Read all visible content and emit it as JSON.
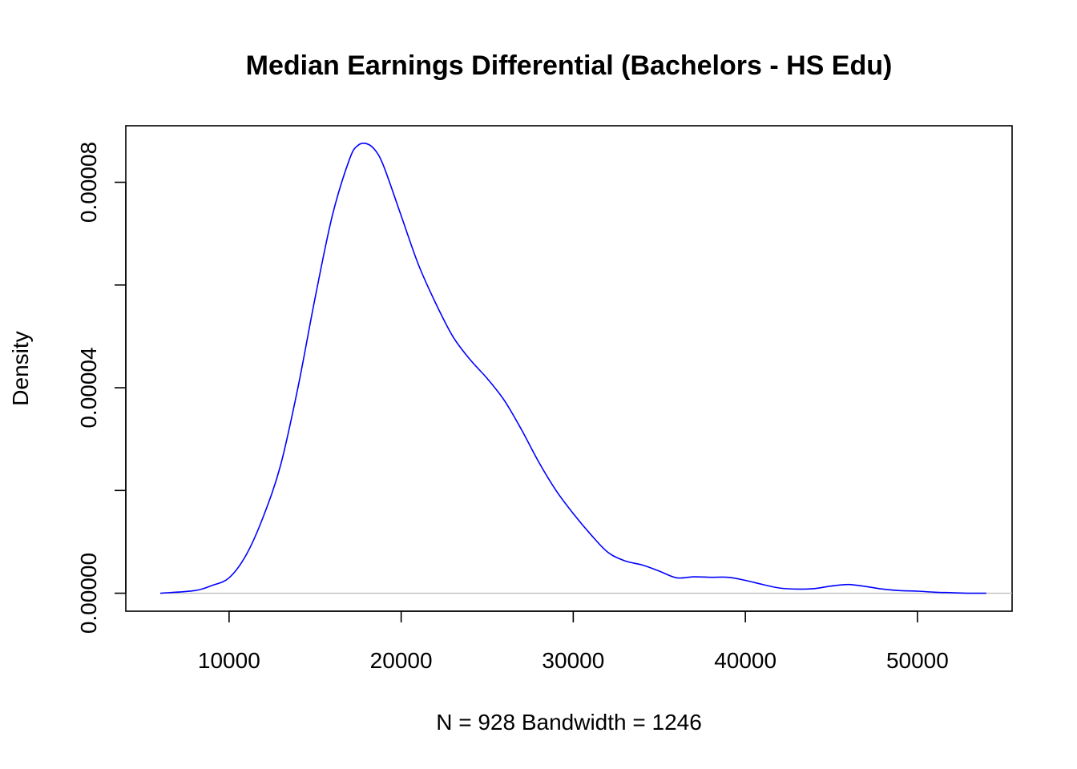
{
  "chart_data": {
    "type": "line",
    "title": "Median Earnings Differential (Bachelors - HS Edu)",
    "xlabel": "N = 928   Bandwidth = 1246",
    "ylabel": "Density",
    "xlim": [
      4000,
      55500
    ],
    "ylim": [
      -3.5e-06,
      9.1e-05
    ],
    "x_ticks": [
      10000,
      20000,
      30000,
      40000,
      50000
    ],
    "x_tick_labels": [
      "10000",
      "20000",
      "30000",
      "40000",
      "50000"
    ],
    "y_ticks": [
      0,
      2e-05,
      4e-05,
      6e-05,
      8e-05
    ],
    "y_tick_labels": [
      "0.00000",
      "",
      "0.00004",
      "",
      "0.00008"
    ],
    "baseline": 0,
    "grid": false,
    "colors": {
      "line": "#0000ff",
      "baseline": "#bebebe"
    },
    "series": [
      {
        "x": [
          6000,
          8000,
          9000,
          10000,
          11000,
          12000,
          13000,
          14000,
          15000,
          16000,
          17000,
          17500,
          18000,
          18500,
          19000,
          20000,
          21000,
          22000,
          23000,
          24000,
          25000,
          26000,
          27000,
          28000,
          29000,
          30000,
          31000,
          32000,
          33000,
          34000,
          35000,
          36000,
          37000,
          38000,
          39000,
          40000,
          41000,
          42000,
          43000,
          44000,
          45000,
          46000,
          47000,
          48000,
          49000,
          50000,
          51000,
          52000,
          53000,
          54000
        ],
        "y": [
          0.0,
          5e-07,
          1.5e-06,
          3e-06,
          7.5e-06,
          1.5e-05,
          2.5e-05,
          4e-05,
          5.75e-05,
          7.35e-05,
          8.45e-05,
          8.72e-05,
          8.75e-05,
          8.62e-05,
          8.3e-05,
          7.35e-05,
          6.4e-05,
          5.65e-05,
          5e-05,
          4.55e-05,
          4.18e-05,
          3.75e-05,
          3.18e-05,
          2.55e-05,
          2e-05,
          1.55e-05,
          1.15e-05,
          8e-06,
          6.3e-06,
          5.5e-06,
          4.3e-06,
          3e-06,
          3.2e-06,
          3.1e-06,
          3.1e-06,
          2.5e-06,
          1.7e-06,
          1e-06,
          8e-07,
          9e-07,
          1.4e-06,
          1.7e-06,
          1.3e-06,
          8e-07,
          5e-07,
          4e-07,
          2e-07,
          1e-07,
          0.0,
          0.0
        ]
      }
    ]
  }
}
